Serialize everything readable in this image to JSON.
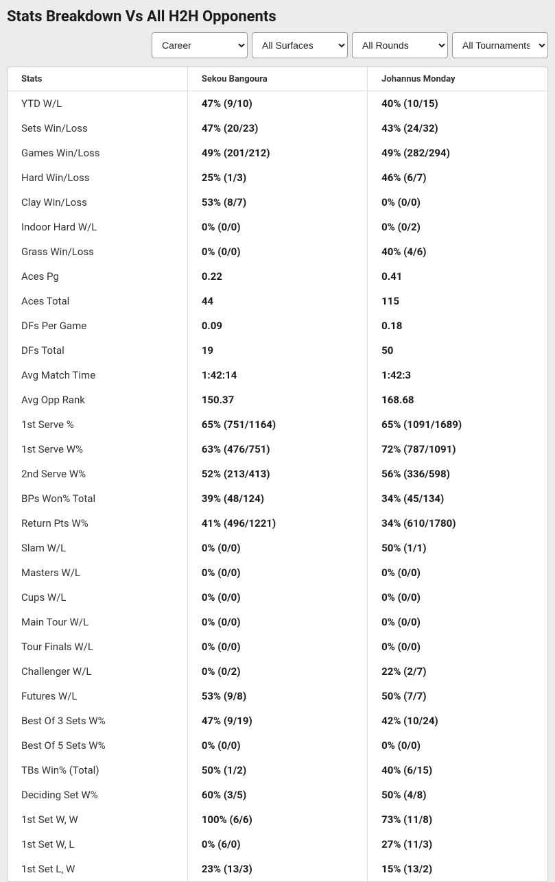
{
  "title": "Stats Breakdown Vs All H2H Opponents",
  "filters": {
    "time": "Career",
    "surface": "All Surfaces",
    "round": "All Rounds",
    "tournament": "All Tournaments"
  },
  "columns": {
    "stat": "Stats",
    "p1": "Sekou Bangoura",
    "p2": "Johannus Monday"
  },
  "rows": [
    {
      "stat": "YTD W/L",
      "p1": "47% (9/10)",
      "p2": "40% (10/15)"
    },
    {
      "stat": "Sets Win/Loss",
      "p1": "47% (20/23)",
      "p2": "43% (24/32)"
    },
    {
      "stat": "Games Win/Loss",
      "p1": "49% (201/212)",
      "p2": "49% (282/294)"
    },
    {
      "stat": "Hard Win/Loss",
      "p1": "25% (1/3)",
      "p2": "46% (6/7)"
    },
    {
      "stat": "Clay Win/Loss",
      "p1": "53% (8/7)",
      "p2": "0% (0/0)"
    },
    {
      "stat": "Indoor Hard W/L",
      "p1": "0% (0/0)",
      "p2": "0% (0/2)"
    },
    {
      "stat": "Grass Win/Loss",
      "p1": "0% (0/0)",
      "p2": "40% (4/6)"
    },
    {
      "stat": "Aces Pg",
      "p1": "0.22",
      "p2": "0.41"
    },
    {
      "stat": "Aces Total",
      "p1": "44",
      "p2": "115"
    },
    {
      "stat": "DFs Per Game",
      "p1": "0.09",
      "p2": "0.18"
    },
    {
      "stat": "DFs Total",
      "p1": "19",
      "p2": "50"
    },
    {
      "stat": "Avg Match Time",
      "p1": "1:42:14",
      "p2": "1:42:3"
    },
    {
      "stat": "Avg Opp Rank",
      "p1": "150.37",
      "p2": "168.68"
    },
    {
      "stat": "1st Serve %",
      "p1": "65% (751/1164)",
      "p2": "65% (1091/1689)"
    },
    {
      "stat": "1st Serve W%",
      "p1": "63% (476/751)",
      "p2": "72% (787/1091)"
    },
    {
      "stat": "2nd Serve W%",
      "p1": "52% (213/413)",
      "p2": "56% (336/598)"
    },
    {
      "stat": "BPs Won% Total",
      "p1": "39% (48/124)",
      "p2": "34% (45/134)"
    },
    {
      "stat": "Return Pts W%",
      "p1": "41% (496/1221)",
      "p2": "34% (610/1780)"
    },
    {
      "stat": "Slam W/L",
      "p1": "0% (0/0)",
      "p2": "50% (1/1)"
    },
    {
      "stat": "Masters W/L",
      "p1": "0% (0/0)",
      "p2": "0% (0/0)"
    },
    {
      "stat": "Cups W/L",
      "p1": "0% (0/0)",
      "p2": "0% (0/0)"
    },
    {
      "stat": "Main Tour W/L",
      "p1": "0% (0/0)",
      "p2": "0% (0/0)"
    },
    {
      "stat": "Tour Finals W/L",
      "p1": "0% (0/0)",
      "p2": "0% (0/0)"
    },
    {
      "stat": "Challenger W/L",
      "p1": "0% (0/2)",
      "p2": "22% (2/7)"
    },
    {
      "stat": "Futures W/L",
      "p1": "53% (9/8)",
      "p2": "50% (7/7)"
    },
    {
      "stat": "Best Of 3 Sets W%",
      "p1": "47% (9/19)",
      "p2": "42% (10/24)"
    },
    {
      "stat": "Best Of 5 Sets W%",
      "p1": "0% (0/0)",
      "p2": "0% (0/0)"
    },
    {
      "stat": "TBs Win% (Total)",
      "p1": "50% (1/2)",
      "p2": "40% (6/15)"
    },
    {
      "stat": "Deciding Set W%",
      "p1": "60% (3/5)",
      "p2": "50% (4/8)"
    },
    {
      "stat": "1st Set W, W",
      "p1": "100% (6/6)",
      "p2": "73% (11/8)"
    },
    {
      "stat": "1st Set W, L",
      "p1": "0% (6/0)",
      "p2": "27% (11/3)"
    },
    {
      "stat": "1st Set L, W",
      "p1": "23% (13/3)",
      "p2": "15% (13/2)"
    }
  ]
}
